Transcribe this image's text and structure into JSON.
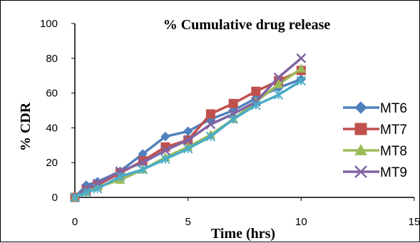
{
  "chart_data": {
    "type": "line",
    "title": "% Cumulative drug release",
    "xlabel": "Time (hrs)",
    "ylabel": "% CDR",
    "xlim": [
      0,
      15
    ],
    "ylim": [
      0,
      100
    ],
    "xticks": [
      0,
      5,
      10,
      15
    ],
    "yticks": [
      0,
      20,
      40,
      60,
      80,
      100
    ],
    "grid": false,
    "legend_position": "right",
    "series": [
      {
        "name": "MT6",
        "color": "#4F81BD",
        "marker": "diamond",
        "x": [
          0,
          0.5,
          1,
          2,
          3,
          4,
          5,
          6,
          7,
          8,
          9,
          10
        ],
        "y": [
          0,
          7,
          9,
          15,
          25,
          35,
          38,
          45,
          50,
          57,
          63,
          68
        ]
      },
      {
        "name": "MT7",
        "color": "#C0504D",
        "marker": "square",
        "x": [
          0,
          0.5,
          1,
          2,
          3,
          4,
          5,
          6,
          7,
          8,
          9,
          10
        ],
        "y": [
          0,
          4,
          7,
          14,
          21,
          29,
          33,
          48,
          54,
          61,
          67,
          73
        ]
      },
      {
        "name": "MT8",
        "color": "#9BBB59",
        "marker": "triangle",
        "x": [
          0,
          0.5,
          1,
          2,
          3,
          4,
          5,
          6,
          7,
          8,
          9,
          10
        ],
        "y": [
          0,
          3,
          6,
          10,
          16,
          23,
          29,
          36,
          45,
          55,
          65,
          74
        ]
      },
      {
        "name": "MT9",
        "color": "#8064A2",
        "marker": "x",
        "x": [
          0,
          0.5,
          1,
          2,
          3,
          4,
          5,
          6,
          7,
          8,
          9,
          10
        ],
        "y": [
          0,
          5,
          8,
          15,
          20,
          27,
          33,
          42,
          48,
          55,
          69,
          80
        ]
      },
      {
        "color": "#4BACC6",
        "marker": "star",
        "x": [
          0,
          0.5,
          1,
          2,
          3,
          4,
          5,
          6,
          7,
          8,
          9,
          10
        ],
        "y": [
          0,
          3,
          5,
          12,
          16,
          22,
          28,
          35,
          45,
          53,
          59,
          67
        ]
      }
    ]
  }
}
